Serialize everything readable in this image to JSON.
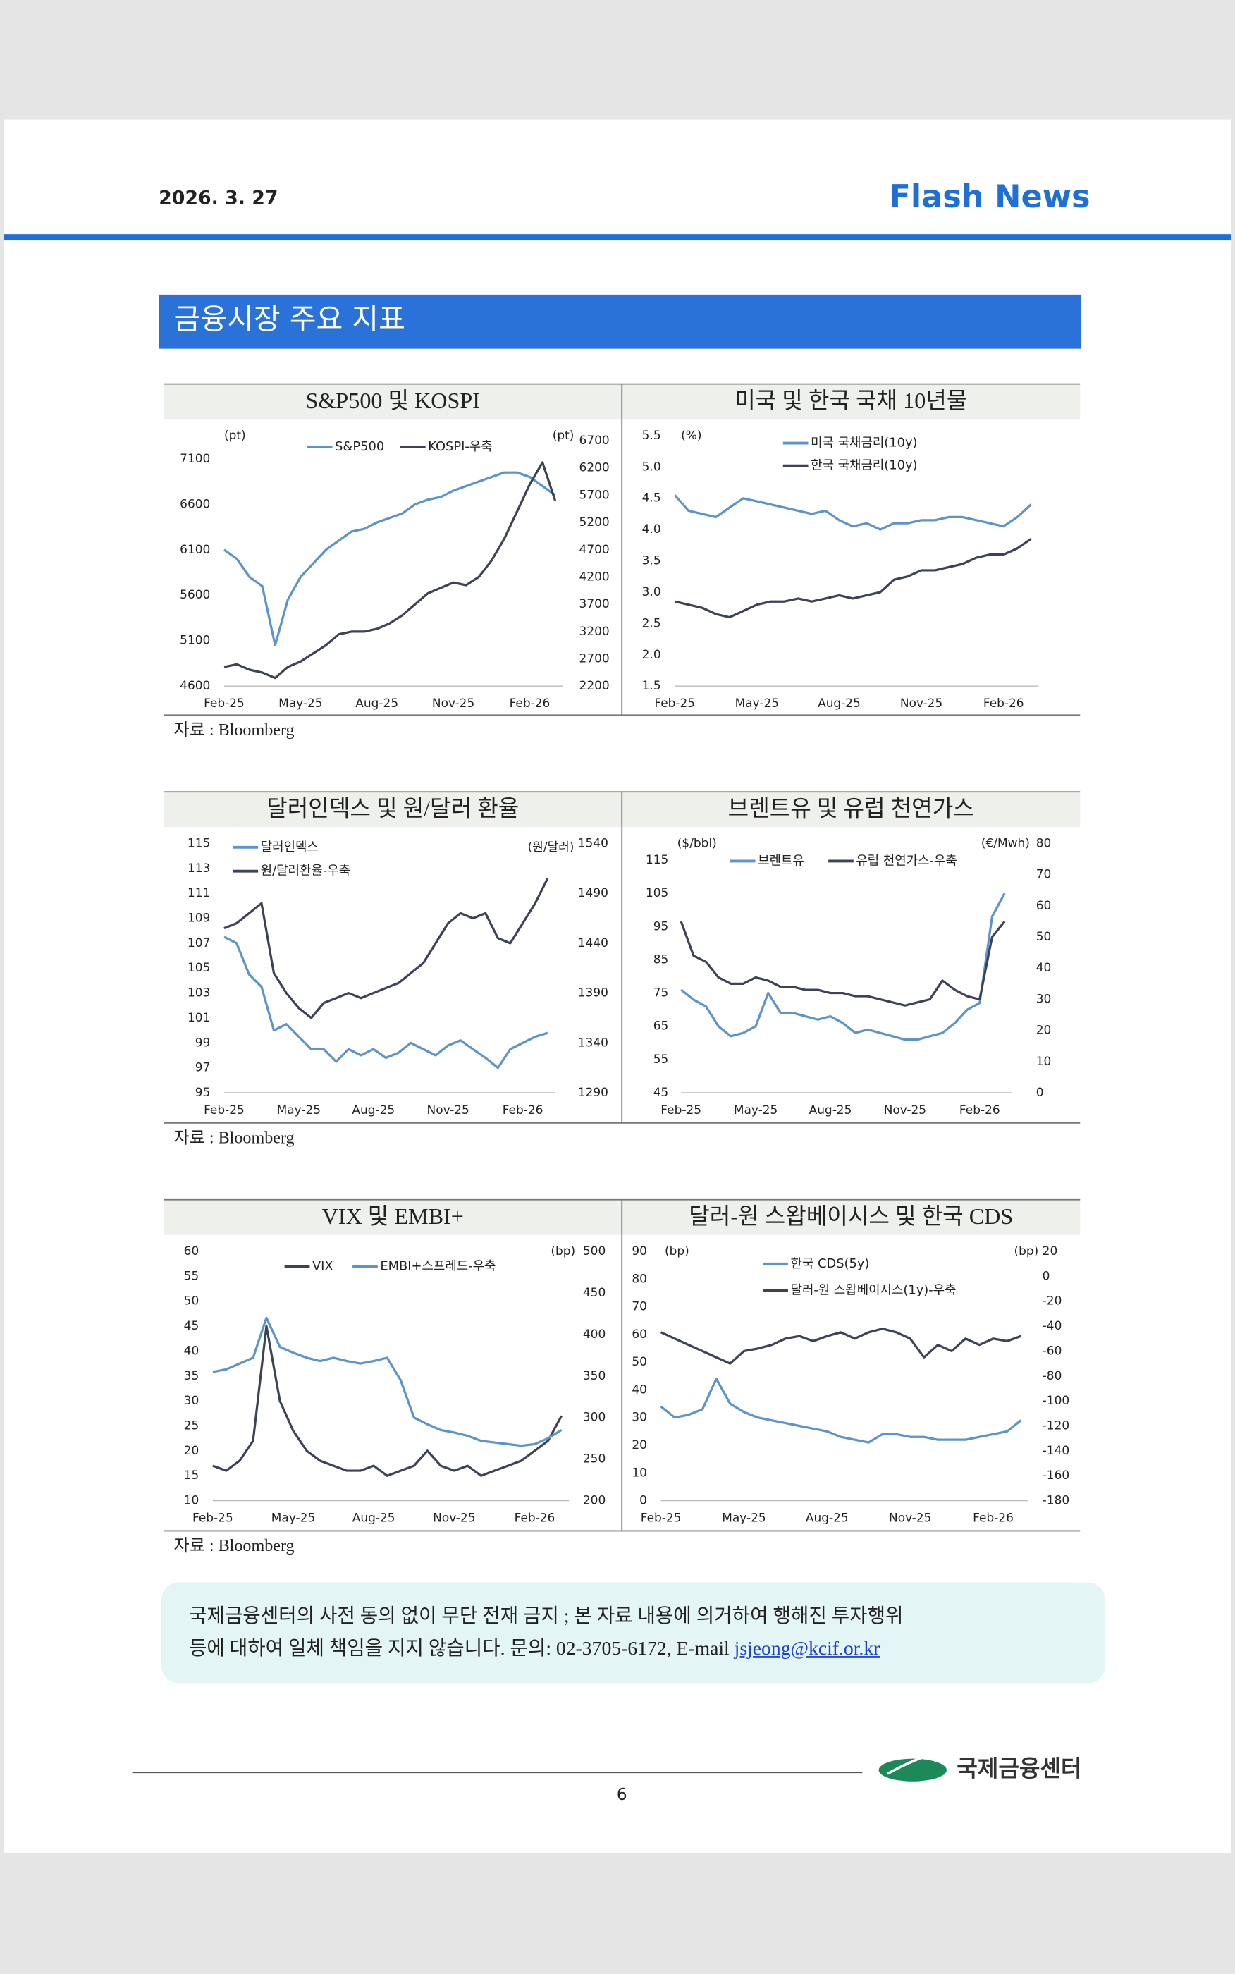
{
  "header": {
    "date": "2026. 3. 27",
    "brand": "Flash News"
  },
  "section_title": "금융시장 주요 지표",
  "chart_data": [
    {
      "type": "line",
      "title": "S&P500 및 KOSPI",
      "y_unit": "(pt)",
      "y2_unit": "(pt)",
      "categories": [
        "Feb-25",
        null,
        null,
        null,
        null,
        null,
        "May-25",
        null,
        null,
        null,
        null,
        null,
        "Aug-25",
        null,
        null,
        null,
        null,
        null,
        "Nov-25",
        null,
        null,
        null,
        null,
        null,
        "Feb-26",
        null,
        null
      ],
      "ylim": [
        4600,
        7300
      ],
      "yticks": [
        4600,
        5100,
        5600,
        6100,
        6600,
        7100
      ],
      "y2lim": [
        2200,
        6700
      ],
      "y2ticks": [
        2200,
        2700,
        3200,
        3700,
        4200,
        4700,
        5200,
        5700,
        6200,
        6700
      ],
      "series": [
        {
          "name": "S&P500",
          "color": "#5b93cc",
          "values": [
            6100,
            6000,
            5800,
            5700,
            5050,
            5550,
            5800,
            5950,
            6100,
            6200,
            6300,
            6330,
            6400,
            6450,
            6500,
            6600,
            6650,
            6680,
            6750,
            6800,
            6850,
            6900,
            6950,
            6950,
            6900,
            6800,
            6700
          ]
        },
        {
          "name": "KOSPI-우축",
          "color": "#3d4357",
          "axis": "y2",
          "values": [
            2550,
            2600,
            2500,
            2450,
            2350,
            2550,
            2650,
            2800,
            2950,
            3150,
            3200,
            3200,
            3250,
            3350,
            3500,
            3700,
            3900,
            4000,
            4100,
            4050,
            4200,
            4500,
            4900,
            5400,
            5900,
            6300,
            5600
          ]
        }
      ]
    },
    {
      "type": "line",
      "title": "미국 및 한국 국채 10년물",
      "y_unit": "(%)",
      "categories": [
        "Feb-25",
        null,
        null,
        null,
        null,
        null,
        "May-25",
        null,
        null,
        null,
        null,
        null,
        "Aug-25",
        null,
        null,
        null,
        null,
        null,
        "Nov-25",
        null,
        null,
        null,
        null,
        null,
        "Feb-26",
        null,
        null
      ],
      "ylim": [
        1.5,
        5.5
      ],
      "yticks": [
        1.5,
        {
          "value": 2,
          "label": "2.0"
        },
        2.5,
        {
          "value": 3,
          "label": "3.0"
        },
        3.5,
        {
          "value": 4,
          "label": "4.0"
        },
        4.5,
        {
          "value": 5,
          "label": "5.0"
        },
        5.5
      ],
      "series": [
        {
          "name": "미국 국채금리(10y)",
          "color": "#5b93cc",
          "values": [
            4.55,
            4.3,
            4.25,
            4.2,
            4.35,
            4.5,
            4.45,
            4.4,
            4.35,
            4.3,
            4.25,
            4.3,
            4.15,
            4.05,
            4.1,
            4.0,
            4.1,
            4.1,
            4.15,
            4.15,
            4.2,
            4.2,
            4.15,
            4.1,
            4.05,
            4.2,
            4.4
          ]
        },
        {
          "name": "한국 국채금리(10y)",
          "color": "#3d4357",
          "values": [
            2.85,
            2.8,
            2.75,
            2.65,
            2.6,
            2.7,
            2.8,
            2.85,
            2.85,
            2.9,
            2.85,
            2.9,
            2.95,
            2.9,
            2.95,
            3.0,
            3.2,
            3.25,
            3.35,
            3.35,
            3.4,
            3.45,
            3.55,
            3.6,
            3.6,
            3.7,
            3.85
          ]
        }
      ]
    },
    {
      "type": "line",
      "title": "달러인덱스 및 원/달러 환율",
      "y2_unit": "(원/달러)",
      "categories": [
        "Feb-25",
        null,
        null,
        null,
        null,
        null,
        "May-25",
        null,
        null,
        null,
        null,
        null,
        "Aug-25",
        null,
        null,
        null,
        null,
        null,
        "Nov-25",
        null,
        null,
        null,
        null,
        null,
        "Feb-26",
        null,
        null
      ],
      "ylim": [
        95,
        115
      ],
      "yticks": [
        95,
        97,
        99,
        101,
        103,
        105,
        107,
        109,
        111,
        113,
        115
      ],
      "y2lim": [
        1290,
        1540
      ],
      "y2ticks": [
        1290,
        1340,
        1390,
        1440,
        1490,
        1540
      ],
      "series": [
        {
          "name": "달러인덱스",
          "color": "#5b93cc",
          "values": [
            107.5,
            107,
            104.5,
            103.5,
            100,
            100.5,
            99.5,
            98.5,
            98.5,
            97.5,
            98.5,
            98,
            98.5,
            97.8,
            98.2,
            99,
            98.5,
            98,
            98.8,
            99.2,
            98.5,
            97.8,
            97,
            98.5,
            99,
            99.5,
            99.8
          ]
        },
        {
          "name": "원/달러환율-우축",
          "color": "#3d4357",
          "axis": "y2",
          "values": [
            1455,
            1460,
            1470,
            1480,
            1410,
            1390,
            1375,
            1365,
            1380,
            1385,
            1390,
            1385,
            1390,
            1395,
            1400,
            1410,
            1420,
            1440,
            1460,
            1470,
            1465,
            1470,
            1445,
            1440,
            1460,
            1480,
            1505
          ]
        }
      ]
    },
    {
      "type": "line",
      "title": "브렌트유 및 유럽 천연가스",
      "y_unit": "($/bbl)",
      "y2_unit": "(€/Mwh)",
      "categories": [
        "Feb-25",
        null,
        null,
        null,
        null,
        null,
        "May-25",
        null,
        null,
        null,
        null,
        null,
        "Aug-25",
        null,
        null,
        null,
        null,
        null,
        "Nov-25",
        null,
        null,
        null,
        null,
        null,
        "Feb-26",
        null,
        null
      ],
      "ylim": [
        45,
        120
      ],
      "yticks": [
        45,
        55,
        65,
        75,
        85,
        95,
        105,
        115
      ],
      "y2lim": [
        0,
        80
      ],
      "y2ticks": [
        0,
        10,
        20,
        30,
        40,
        50,
        60,
        70,
        80
      ],
      "series": [
        {
          "name": "브렌트유",
          "color": "#5b93cc",
          "values": [
            76,
            73,
            71,
            65,
            62,
            63,
            65,
            75,
            69,
            69,
            68,
            67,
            68,
            66,
            63,
            64,
            63,
            62,
            61,
            61,
            62,
            63,
            66,
            70,
            72,
            98,
            105
          ]
        },
        {
          "name": "유럽 천연가스-우축",
          "color": "#3d4357",
          "axis": "y2",
          "values": [
            55,
            44,
            42,
            37,
            35,
            35,
            37,
            36,
            34,
            34,
            33,
            33,
            32,
            32,
            31,
            31,
            30,
            29,
            28,
            29,
            30,
            36,
            33,
            31,
            30,
            50,
            55
          ]
        }
      ]
    },
    {
      "type": "line",
      "title": "VIX 및 EMBI+",
      "y2_unit": "(bp)",
      "categories": [
        "Feb-25",
        null,
        null,
        null,
        null,
        null,
        "May-25",
        null,
        null,
        null,
        null,
        null,
        "Aug-25",
        null,
        null,
        null,
        null,
        null,
        "Nov-25",
        null,
        null,
        null,
        null,
        null,
        "Feb-26",
        null,
        null
      ],
      "ylim": [
        10,
        60
      ],
      "yticks": [
        10,
        15,
        20,
        25,
        30,
        35,
        40,
        45,
        50,
        55,
        60
      ],
      "y2lim": [
        200,
        500
      ],
      "y2ticks": [
        200,
        250,
        300,
        350,
        400,
        450,
        500
      ],
      "series": [
        {
          "name": "VIX",
          "color": "#3d4357",
          "values": [
            17,
            16,
            18,
            22,
            45,
            30,
            24,
            20,
            18,
            17,
            16,
            16,
            17,
            15,
            16,
            17,
            20,
            17,
            16,
            17,
            15,
            16,
            17,
            18,
            20,
            22,
            27
          ]
        },
        {
          "name": "EMBI+스프레드-우축",
          "color": "#5b93cc",
          "axis": "y2",
          "values": [
            355,
            358,
            365,
            372,
            420,
            385,
            378,
            372,
            368,
            372,
            368,
            365,
            368,
            372,
            345,
            300,
            292,
            285,
            282,
            278,
            272,
            270,
            268,
            266,
            268,
            275,
            285
          ]
        }
      ]
    },
    {
      "type": "line",
      "title": "달러-원 스왑베이시스 및 한국 CDS",
      "y_unit": "(bp)",
      "y2_unit": "(bp)",
      "categories": [
        "Feb-25",
        null,
        null,
        null,
        null,
        null,
        "May-25",
        null,
        null,
        null,
        null,
        null,
        "Aug-25",
        null,
        null,
        null,
        null,
        null,
        "Nov-25",
        null,
        null,
        null,
        null,
        null,
        "Feb-26",
        null,
        null
      ],
      "ylim": [
        0,
        90
      ],
      "yticks": [
        0,
        10,
        20,
        30,
        40,
        50,
        60,
        70,
        80,
        90
      ],
      "y2lim": [
        -180,
        20
      ],
      "y2ticks": [
        -180,
        -160,
        -140,
        -120,
        -100,
        -80,
        -60,
        -40,
        -20,
        0,
        20
      ],
      "series": [
        {
          "name": "한국 CDS(5y)",
          "color": "#5b93cc",
          "values": [
            34,
            30,
            31,
            33,
            44,
            35,
            32,
            30,
            29,
            28,
            27,
            26,
            25,
            23,
            22,
            21,
            24,
            24,
            23,
            23,
            22,
            22,
            22,
            23,
            24,
            25,
            29
          ]
        },
        {
          "name": "달러-원 스왑베이시스(1y)-우축",
          "color": "#3d4357",
          "axis": "y2",
          "values": [
            -45,
            -50,
            -55,
            -60,
            -65,
            -70,
            -60,
            -58,
            -55,
            -50,
            -48,
            -52,
            -48,
            -45,
            -50,
            -45,
            -42,
            -45,
            -50,
            -65,
            -55,
            -60,
            -50,
            -55,
            -50,
            -52,
            -48
          ]
        }
      ]
    }
  ],
  "sources": [
    "자료 : Bloomberg",
    "자료 : Bloomberg",
    "자료 : Bloomberg"
  ],
  "disclaimer": {
    "line_1": "국제금융센터의 사전 동의 없이 무단 전재 금지 ; 본 자료 내용에 의거하여 행해진 투자행위",
    "line_2": "등에 대하여 일체 책임을 지지 않습니다. 문의: 02-3705-6172, E-mail ",
    "email": "jsjeong@kcif.or.kr"
  },
  "footer": {
    "page": "6",
    "logo": "국제금융센터"
  }
}
